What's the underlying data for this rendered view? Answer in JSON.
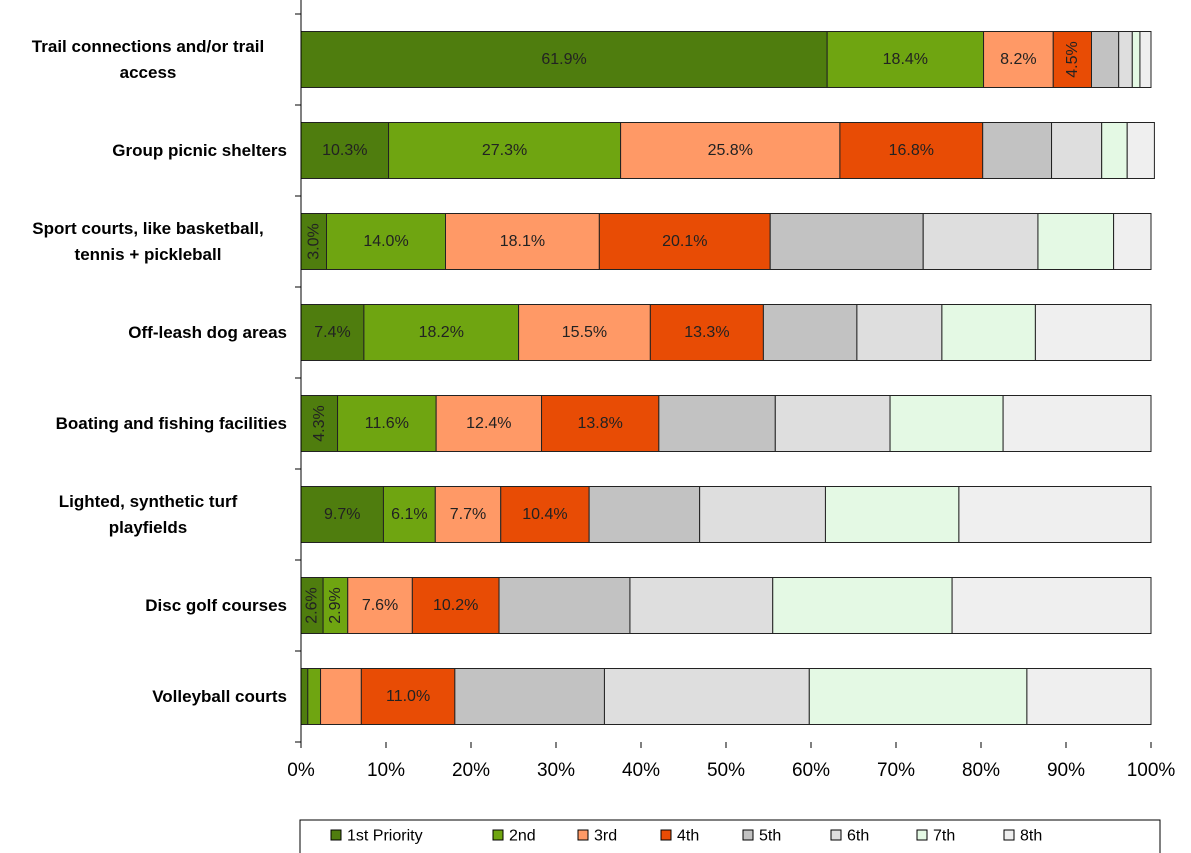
{
  "chart_data": {
    "type": "bar",
    "orientation": "horizontal",
    "stacked": "percent",
    "categories": [
      [
        "Trail connections and/or trail",
        "access"
      ],
      [
        "Group picnic shelters"
      ],
      [
        "Sport courts, like basketball,",
        "tennis + pickleball"
      ],
      [
        "Off-leash dog areas"
      ],
      [
        "Boating and fishing facilities"
      ],
      [
        "Lighted, synthetic turf",
        "playfields"
      ],
      [
        "Disc golf courses"
      ],
      [
        "Volleyball courts"
      ]
    ],
    "series": [
      {
        "name": "1st Priority",
        "color": "#4f7d0e",
        "values": [
          61.9,
          10.3,
          3.0,
          7.4,
          4.3,
          9.7,
          2.6,
          0.8
        ],
        "labels": [
          "61.9%",
          "10.3%",
          "3.0%",
          "7.4%",
          "4.3%",
          "9.7%",
          "2.6%",
          ""
        ],
        "vertical": [
          false,
          false,
          true,
          false,
          true,
          false,
          true,
          false
        ]
      },
      {
        "name": "2nd",
        "color": "#6fa511",
        "values": [
          18.4,
          27.3,
          14.0,
          18.2,
          11.6,
          6.1,
          2.9,
          1.5
        ],
        "labels": [
          "18.4%",
          "27.3%",
          "14.0%",
          "18.2%",
          "11.6%",
          "6.1%",
          "2.9%",
          ""
        ],
        "vertical": [
          false,
          false,
          false,
          false,
          false,
          false,
          true,
          false
        ]
      },
      {
        "name": "3rd",
        "color": "#ff9966",
        "values": [
          8.2,
          25.8,
          18.1,
          15.5,
          12.4,
          7.7,
          7.6,
          4.8
        ],
        "labels": [
          "8.2%",
          "25.8%",
          "18.1%",
          "15.5%",
          "12.4%",
          "7.7%",
          "7.6%",
          ""
        ],
        "vertical": [
          false,
          false,
          false,
          false,
          false,
          false,
          false,
          false
        ]
      },
      {
        "name": "4th",
        "color": "#e84c05",
        "values": [
          4.5,
          16.8,
          20.1,
          13.3,
          13.8,
          10.4,
          10.2,
          11.0
        ],
        "labels": [
          "4.5%",
          "16.8%",
          "20.1%",
          "13.3%",
          "13.8%",
          "10.4%",
          "10.2%",
          "11.0%"
        ],
        "vertical": [
          true,
          false,
          false,
          false,
          false,
          false,
          false,
          false
        ]
      },
      {
        "name": "5th",
        "color": "#c2c2c2",
        "values": [
          3.2,
          8.1,
          18.0,
          11.0,
          13.7,
          13.0,
          15.4,
          17.6
        ],
        "labels": [
          "",
          "",
          "",
          "",
          "",
          "",
          "",
          ""
        ],
        "vertical": [
          false,
          false,
          false,
          false,
          false,
          false,
          false,
          false
        ]
      },
      {
        "name": "6th",
        "color": "#dedede",
        "values": [
          1.6,
          5.9,
          13.5,
          10.0,
          13.5,
          14.8,
          16.8,
          24.1
        ],
        "labels": [
          "",
          "",
          "",
          "",
          "",
          "",
          "",
          ""
        ],
        "vertical": [
          false,
          false,
          false,
          false,
          false,
          false,
          false,
          false
        ]
      },
      {
        "name": "7th",
        "color": "#e4f9e4",
        "values": [
          0.9,
          3.0,
          8.9,
          11.0,
          13.3,
          15.7,
          21.1,
          25.6
        ],
        "labels": [
          "",
          "",
          "",
          "",
          "",
          "",
          "",
          ""
        ],
        "vertical": [
          false,
          false,
          false,
          false,
          false,
          false,
          false,
          false
        ]
      },
      {
        "name": "8th",
        "color": "#efefef",
        "values": [
          1.3,
          3.2,
          4.4,
          13.6,
          17.4,
          22.6,
          23.4,
          14.6
        ],
        "labels": [
          "",
          "",
          "",
          "",
          "",
          "",
          "",
          ""
        ],
        "vertical": [
          false,
          false,
          false,
          false,
          false,
          false,
          false,
          false
        ]
      }
    ],
    "x_ticks": [
      "0%",
      "10%",
      "20%",
      "30%",
      "40%",
      "50%",
      "60%",
      "70%",
      "80%",
      "90%",
      "100%"
    ],
    "xlim": [
      0,
      100
    ],
    "grid": false,
    "legend_position": "bottom"
  }
}
